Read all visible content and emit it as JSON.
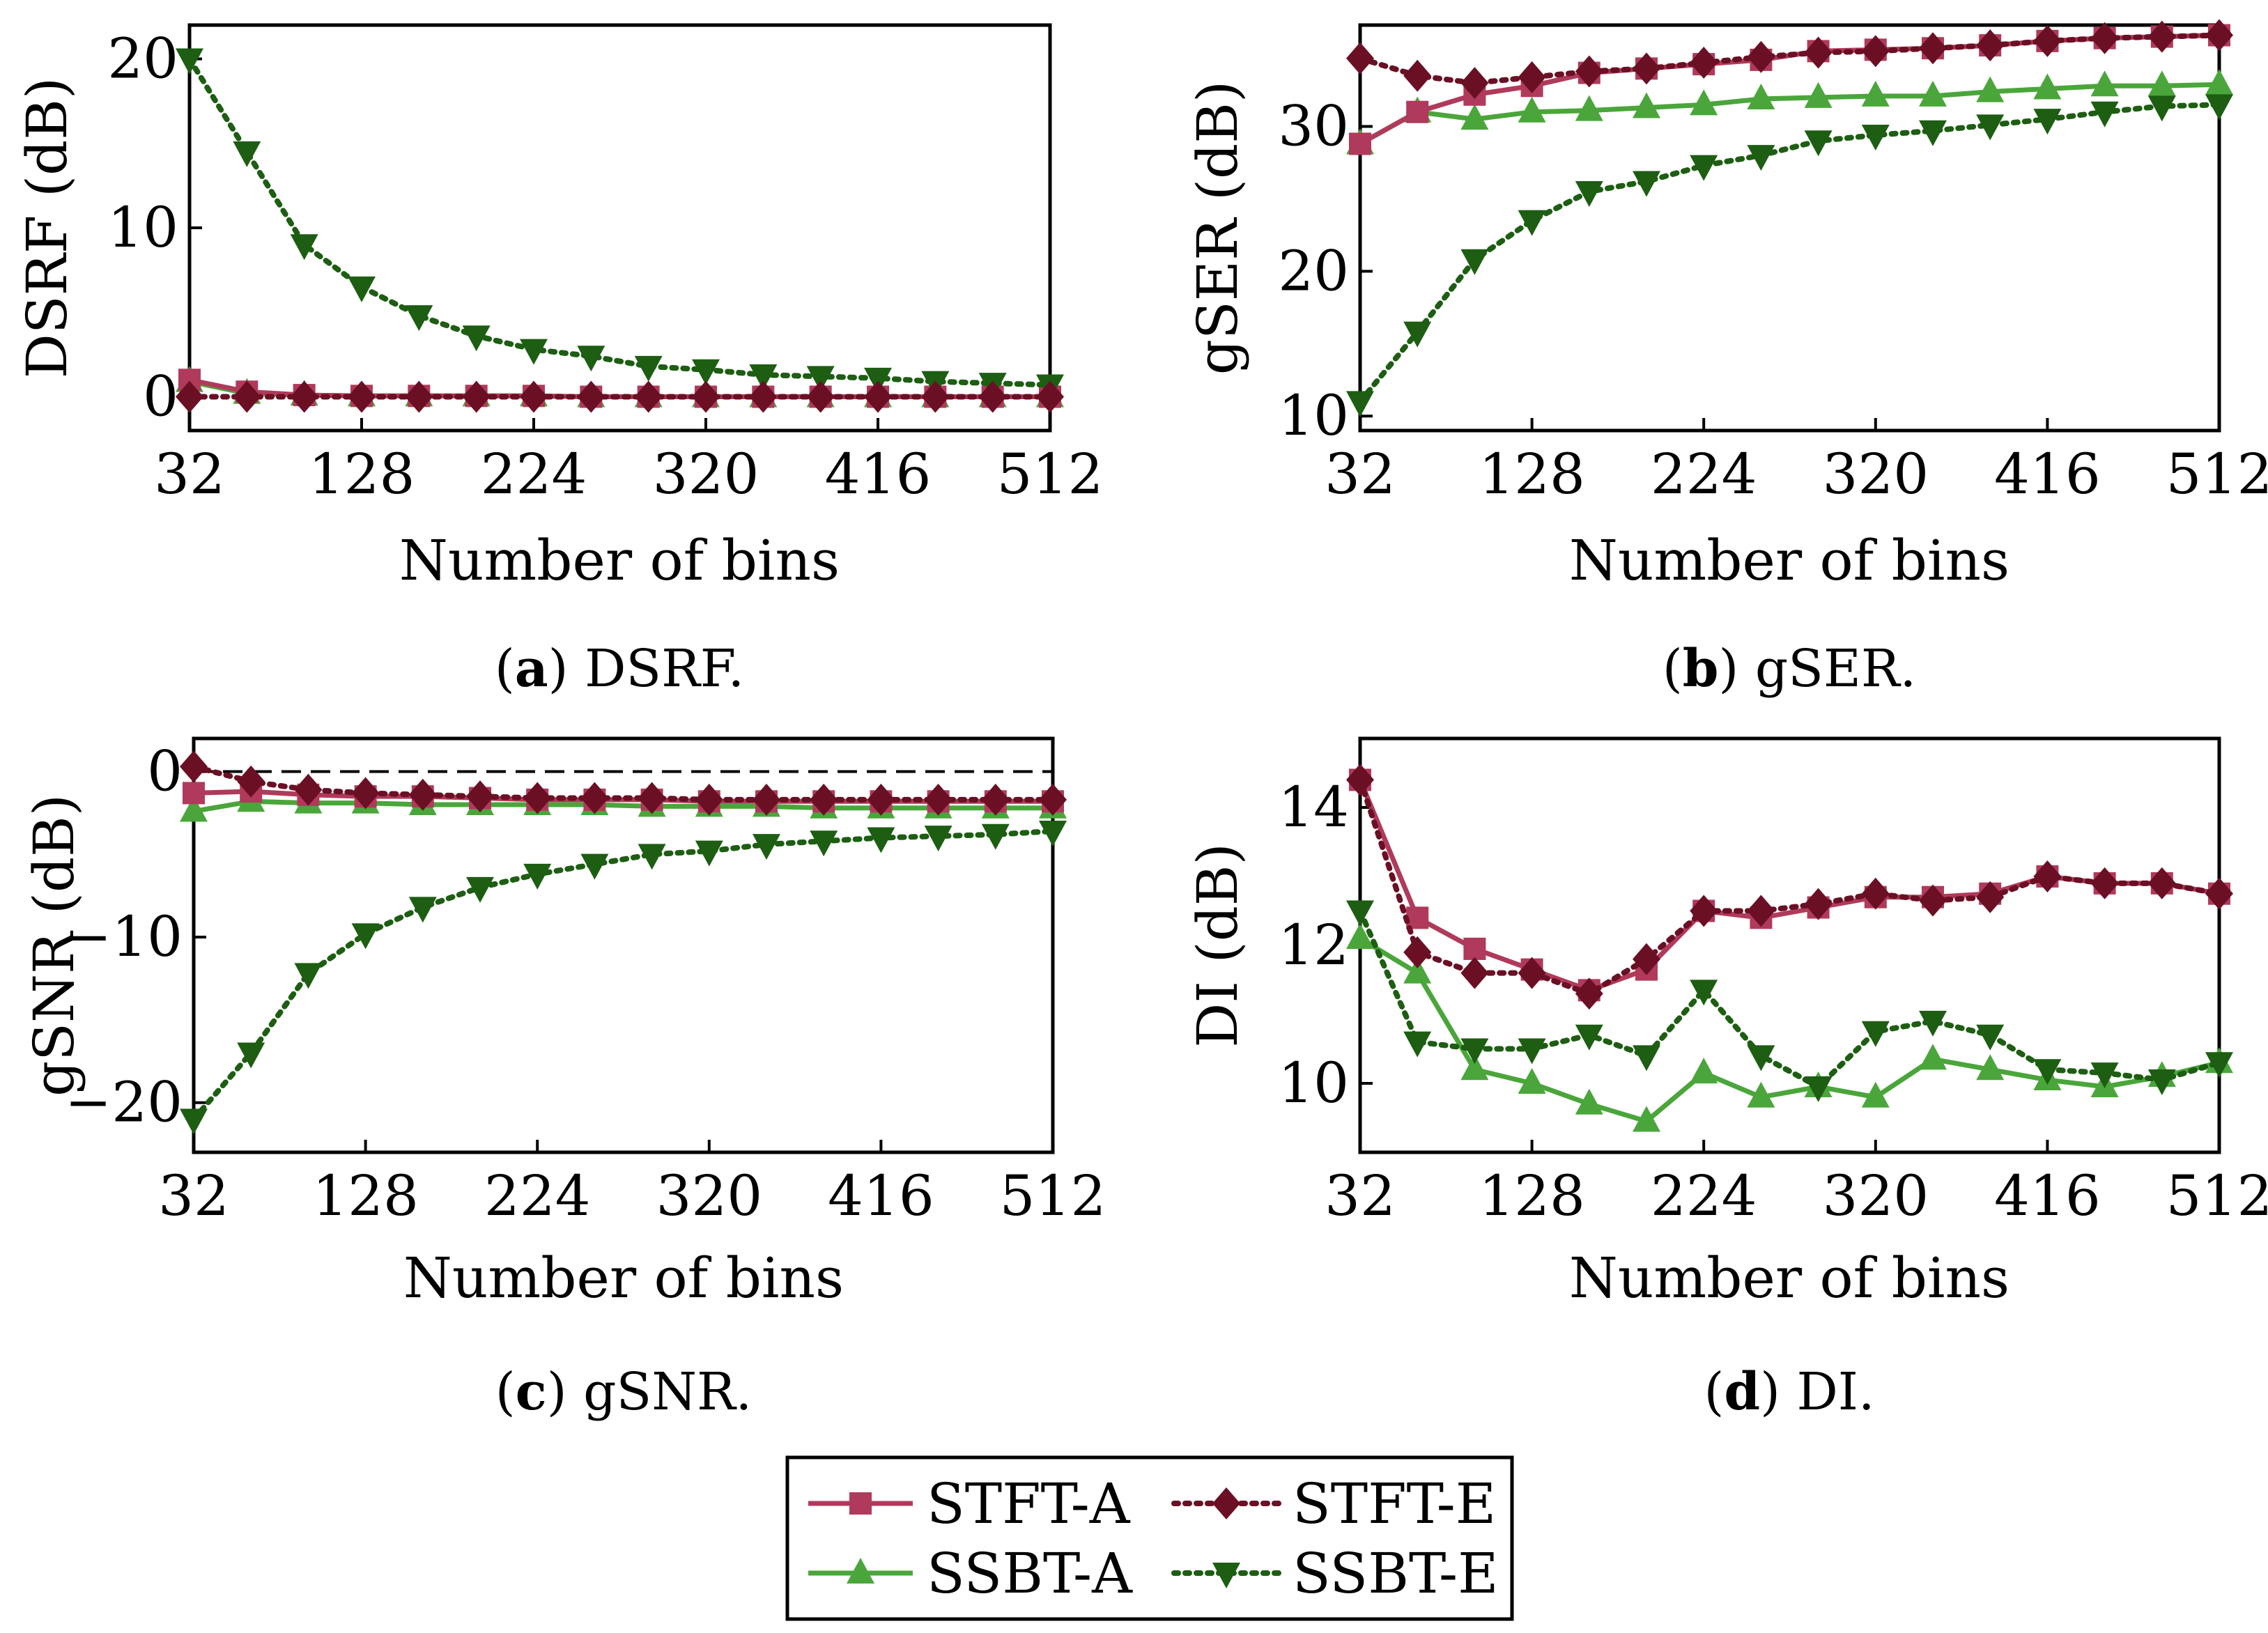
{
  "chart_data": [
    {
      "id": "a",
      "type": "line",
      "caption_letter": "a",
      "caption_text": "DSRF.",
      "xlabel": "Number of bins",
      "ylabel": "DSRF (dB)",
      "xlim": [
        32,
        512
      ],
      "ylim": [
        -2,
        22
      ],
      "xticks": [
        32,
        128,
        224,
        320,
        416,
        512
      ],
      "yticks": [
        0,
        10,
        20
      ],
      "reference_line": null,
      "x": [
        32,
        64,
        96,
        128,
        160,
        192,
        224,
        256,
        288,
        320,
        352,
        384,
        416,
        448,
        480,
        512
      ],
      "series": [
        {
          "name": "STFT-A",
          "values": [
            1.0,
            0.3,
            0.1,
            0.05,
            0.05,
            0.05,
            0.05,
            0.0,
            0.0,
            0.0,
            0.0,
            0.0,
            0.0,
            0.0,
            0.0,
            0.0
          ]
        },
        {
          "name": "STFT-E",
          "values": [
            0.0,
            0.0,
            0.0,
            0.0,
            0.0,
            0.0,
            0.0,
            0.0,
            0.0,
            0.0,
            0.0,
            0.0,
            0.0,
            0.0,
            0.0,
            0.0
          ]
        },
        {
          "name": "SSBT-A",
          "values": [
            0.9,
            0.2,
            0.1,
            0.05,
            0.05,
            0.05,
            0.05,
            0.0,
            0.0,
            0.0,
            0.0,
            0.0,
            0.0,
            0.0,
            0.0,
            0.0
          ]
        },
        {
          "name": "SSBT-E",
          "values": [
            20.0,
            14.5,
            9.0,
            6.5,
            4.8,
            3.6,
            2.8,
            2.4,
            1.8,
            1.6,
            1.3,
            1.2,
            1.1,
            0.9,
            0.8,
            0.7
          ]
        }
      ]
    },
    {
      "id": "b",
      "type": "line",
      "caption_letter": "b",
      "caption_text": "gSER.",
      "xlabel": "Number of bins",
      "ylabel": "gSER (dB)",
      "xlim": [
        32,
        512
      ],
      "ylim": [
        9,
        37
      ],
      "xticks": [
        32,
        128,
        224,
        320,
        416,
        512
      ],
      "yticks": [
        10,
        20,
        30
      ],
      "reference_line": null,
      "x": [
        32,
        64,
        96,
        128,
        160,
        192,
        224,
        256,
        288,
        320,
        352,
        384,
        416,
        448,
        480,
        512
      ],
      "series": [
        {
          "name": "STFT-A",
          "values": [
            28.8,
            31.0,
            32.2,
            32.8,
            33.7,
            34.0,
            34.3,
            34.6,
            35.2,
            35.3,
            35.4,
            35.6,
            35.9,
            36.1,
            36.2,
            36.3
          ]
        },
        {
          "name": "STFT-E",
          "values": [
            34.7,
            33.5,
            33.0,
            33.4,
            33.8,
            34.0,
            34.4,
            34.8,
            35.1,
            35.2,
            35.4,
            35.6,
            35.9,
            36.1,
            36.2,
            36.3
          ]
        },
        {
          "name": "SSBT-A",
          "values": [
            28.8,
            31.0,
            30.5,
            31.0,
            31.1,
            31.3,
            31.5,
            31.9,
            32.0,
            32.1,
            32.1,
            32.4,
            32.6,
            32.8,
            32.8,
            32.9
          ]
        },
        {
          "name": "SSBT-E",
          "values": [
            11.0,
            15.8,
            20.8,
            23.5,
            25.5,
            26.2,
            27.3,
            28.0,
            29.0,
            29.4,
            29.7,
            30.1,
            30.5,
            31.0,
            31.4,
            31.5
          ]
        }
      ]
    },
    {
      "id": "c",
      "type": "line",
      "caption_letter": "c",
      "caption_text": "gSNR.",
      "xlabel": "Number of bins",
      "ylabel": "gSNR (dB)",
      "xlim": [
        32,
        512
      ],
      "ylim": [
        -23,
        2
      ],
      "xticks": [
        32,
        128,
        224,
        320,
        416,
        512
      ],
      "yticks": [
        0,
        -10,
        -20
      ],
      "reference_line": 0,
      "x": [
        32,
        64,
        96,
        128,
        160,
        192,
        224,
        256,
        288,
        320,
        352,
        384,
        416,
        448,
        480,
        512
      ],
      "series": [
        {
          "name": "STFT-A",
          "values": [
            -1.3,
            -1.2,
            -1.4,
            -1.5,
            -1.5,
            -1.6,
            -1.7,
            -1.7,
            -1.7,
            -1.8,
            -1.8,
            -1.8,
            -1.8,
            -1.8,
            -1.8,
            -1.8
          ]
        },
        {
          "name": "STFT-E",
          "values": [
            0.3,
            -0.6,
            -1.1,
            -1.3,
            -1.4,
            -1.5,
            -1.6,
            -1.6,
            -1.6,
            -1.7,
            -1.7,
            -1.7,
            -1.7,
            -1.7,
            -1.7,
            -1.7
          ]
        },
        {
          "name": "SSBT-A",
          "values": [
            -2.4,
            -1.8,
            -1.9,
            -1.9,
            -2.0,
            -2.0,
            -2.0,
            -2.0,
            -2.1,
            -2.1,
            -2.1,
            -2.2,
            -2.2,
            -2.2,
            -2.2,
            -2.2
          ]
        },
        {
          "name": "SSBT-E",
          "values": [
            -21.0,
            -17.0,
            -12.2,
            -9.8,
            -8.2,
            -7.0,
            -6.2,
            -5.6,
            -5.0,
            -4.8,
            -4.4,
            -4.2,
            -4.0,
            -3.9,
            -3.8,
            -3.6
          ]
        }
      ]
    },
    {
      "id": "d",
      "type": "line",
      "caption_letter": "d",
      "caption_text": "DI.",
      "xlabel": "Number of bins",
      "ylabel": "DI (dB)",
      "xlim": [
        32,
        512
      ],
      "ylim": [
        9,
        15
      ],
      "xticks": [
        32,
        128,
        224,
        320,
        416,
        512
      ],
      "yticks": [
        10,
        12,
        14
      ],
      "reference_line": null,
      "x": [
        32,
        64,
        96,
        128,
        160,
        192,
        224,
        256,
        288,
        320,
        352,
        384,
        416,
        448,
        480,
        512
      ],
      "series": [
        {
          "name": "STFT-A",
          "values": [
            14.4,
            12.4,
            11.95,
            11.65,
            11.35,
            11.65,
            12.5,
            12.4,
            12.55,
            12.7,
            12.7,
            12.75,
            13.0,
            12.9,
            12.9,
            12.75
          ]
        },
        {
          "name": "STFT-E",
          "values": [
            14.4,
            11.9,
            11.6,
            11.6,
            11.3,
            11.8,
            12.5,
            12.5,
            12.6,
            12.75,
            12.65,
            12.7,
            13.0,
            12.9,
            12.9,
            12.75
          ]
        },
        {
          "name": "SSBT-A",
          "values": [
            12.1,
            11.6,
            10.2,
            10.0,
            9.7,
            9.45,
            10.15,
            9.8,
            9.95,
            9.8,
            10.35,
            10.2,
            10.05,
            9.95,
            10.1,
            10.3
          ]
        },
        {
          "name": "SSBT-E",
          "values": [
            12.5,
            10.6,
            10.5,
            10.5,
            10.7,
            10.4,
            11.35,
            10.4,
            9.95,
            10.75,
            10.9,
            10.7,
            10.2,
            10.15,
            10.05,
            10.3
          ]
        }
      ]
    }
  ],
  "legend": {
    "entries": [
      {
        "name": "STFT-A",
        "color": "#b03a5b",
        "marker": "square",
        "dashed": false
      },
      {
        "name": "STFT-E",
        "color": "#6b0f24",
        "marker": "diamond",
        "dashed": true
      },
      {
        "name": "SSBT-A",
        "color": "#4aa63a",
        "marker": "triangle-up",
        "dashed": false
      },
      {
        "name": "SSBT-E",
        "color": "#1d5e12",
        "marker": "triangle-down",
        "dashed": true
      }
    ]
  }
}
